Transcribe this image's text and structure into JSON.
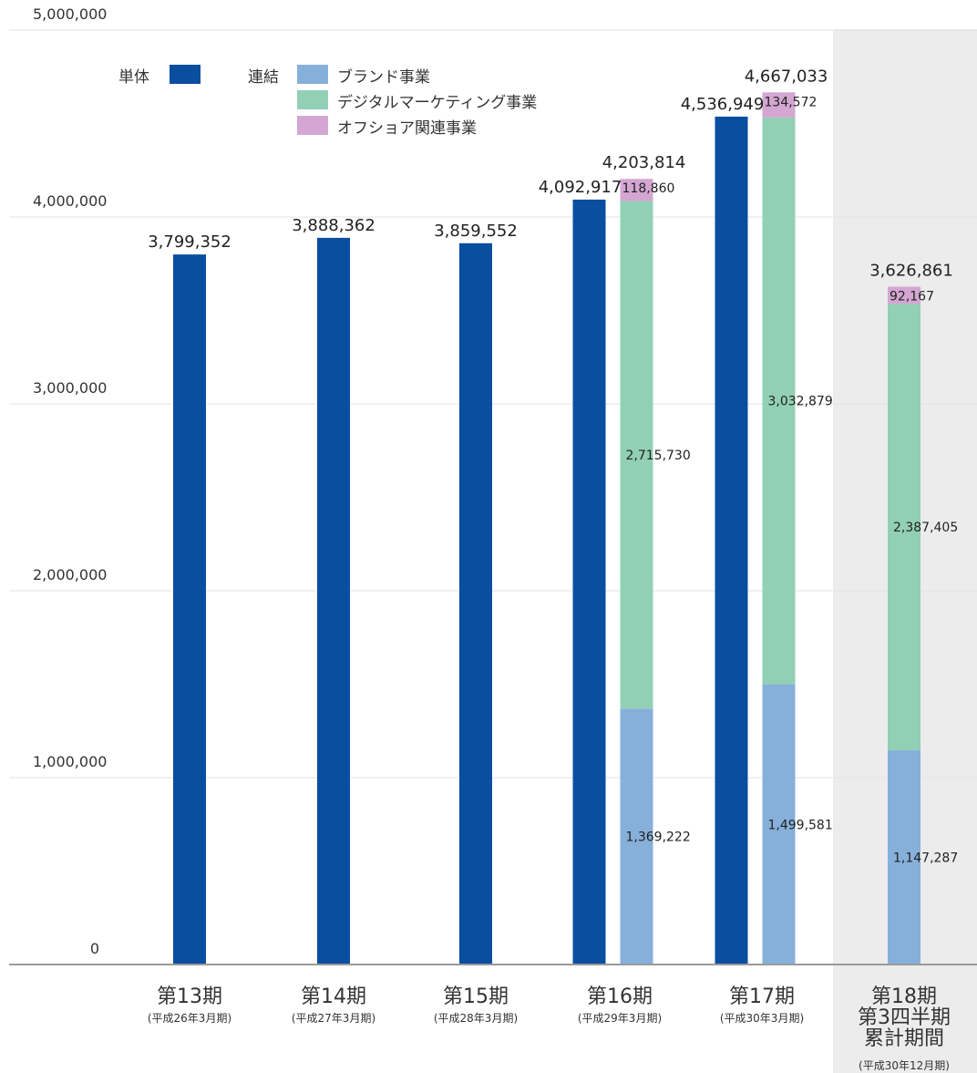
{
  "chart_data": {
    "type": "bar",
    "ylim": [
      0,
      5000000
    ],
    "yticks": [
      "0",
      "1,000,000",
      "2,000,000",
      "3,000,000",
      "4,000,000",
      "5,000,000"
    ],
    "grid": true,
    "legend": {
      "standalone_label": "単体",
      "consolidated_label": "連結",
      "items": [
        "ブランド事業",
        "デジタルマーケティング事業",
        "オフショア関連事業"
      ]
    },
    "colors": {
      "standalone": "#0a4ea0",
      "brand": "#86b0da",
      "digital": "#92d0b5",
      "offshore": "#d4a6d2",
      "highlight_bg": "#ececec",
      "grid": "#e3e3e3",
      "axis": "#9a9a9a"
    },
    "categories": [
      {
        "label": [
          "第13期"
        ],
        "sub": "(平成26年3月期)",
        "highlight": false
      },
      {
        "label": [
          "第14期"
        ],
        "sub": "(平成27年3月期)",
        "highlight": false
      },
      {
        "label": [
          "第15期"
        ],
        "sub": "(平成28年3月期)",
        "highlight": false
      },
      {
        "label": [
          "第16期"
        ],
        "sub": "(平成29年3月期)",
        "highlight": false
      },
      {
        "label": [
          "第17期"
        ],
        "sub": "(平成30年3月期)",
        "highlight": false
      },
      {
        "label": [
          "第18期",
          "第3四半期",
          "累計期間"
        ],
        "sub": "(平成30年12月期)",
        "highlight": true
      }
    ],
    "standalone": [
      {
        "category": 0,
        "value": 3799352,
        "label": "3,799,352"
      },
      {
        "category": 1,
        "value": 3888362,
        "label": "3,888,362"
      },
      {
        "category": 2,
        "value": 3859552,
        "label": "3,859,552"
      },
      {
        "category": 3,
        "value": 4092917,
        "label": "4,092,917"
      },
      {
        "category": 4,
        "value": 4536949,
        "label": "4,536,949"
      }
    ],
    "consolidated": [
      {
        "category": 3,
        "total": 4203814,
        "total_label": "4,203,814",
        "brand": 1369222,
        "brand_label": "1,369,222",
        "digital": 2715730,
        "digital_label": "2,715,730",
        "offshore": 118860,
        "offshore_label": "118,860"
      },
      {
        "category": 4,
        "total": 4667033,
        "total_label": "4,667,033",
        "brand": 1499581,
        "brand_label": "1,499,581",
        "digital": 3032879,
        "digital_label": "3,032,879",
        "offshore": 134572,
        "offshore_label": "134,572"
      },
      {
        "category": 5,
        "total": 3626861,
        "total_label": "3,626,861",
        "brand": 1147287,
        "brand_label": "1,147,287",
        "digital": 2387405,
        "digital_label": "2,387,405",
        "offshore": 92167,
        "offshore_label": "92,167"
      }
    ]
  }
}
